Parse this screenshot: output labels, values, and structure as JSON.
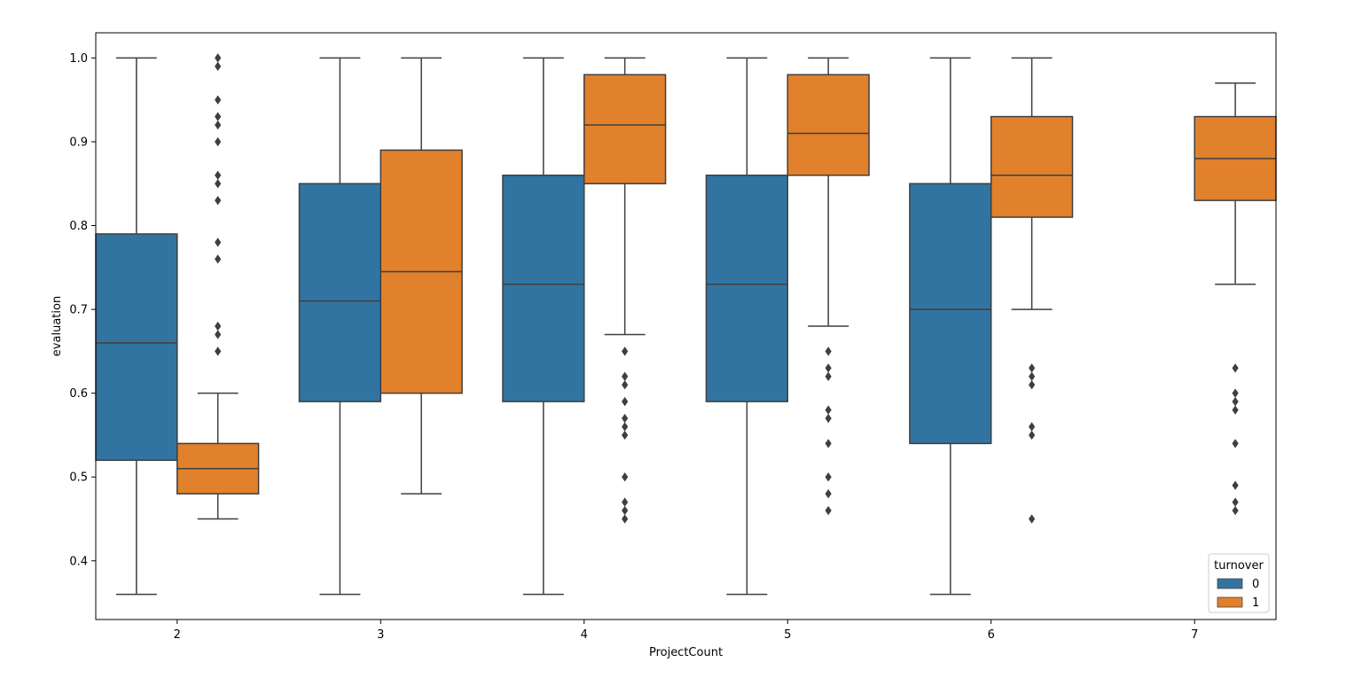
{
  "chart_data": {
    "type": "box",
    "xlabel": "ProjectCount",
    "ylabel": "evaluation",
    "categories": [
      "2",
      "3",
      "4",
      "5",
      "6",
      "7"
    ],
    "ylim": [
      0.33,
      1.03
    ],
    "yticks": [
      "0.4",
      "0.5",
      "0.6",
      "0.7",
      "0.8",
      "0.9",
      "1.0"
    ],
    "grid": false,
    "legend": {
      "title": "turnover",
      "placement": "bottom-right",
      "entries": [
        {
          "label": "0",
          "color": "#3274a1"
        },
        {
          "label": "1",
          "color": "#e1812c"
        }
      ]
    },
    "series": [
      {
        "name": "0",
        "color": "#3274a1",
        "boxes": [
          {
            "category": "2",
            "whislo": 0.36,
            "q1": 0.52,
            "med": 0.66,
            "q3": 0.79,
            "whishi": 1.0,
            "fliers": []
          },
          {
            "category": "3",
            "whislo": 0.36,
            "q1": 0.59,
            "med": 0.71,
            "q3": 0.85,
            "whishi": 1.0,
            "fliers": []
          },
          {
            "category": "4",
            "whislo": 0.36,
            "q1": 0.59,
            "med": 0.73,
            "q3": 0.86,
            "whishi": 1.0,
            "fliers": []
          },
          {
            "category": "5",
            "whislo": 0.36,
            "q1": 0.59,
            "med": 0.73,
            "q3": 0.86,
            "whishi": 1.0,
            "fliers": []
          },
          {
            "category": "6",
            "whislo": 0.36,
            "q1": 0.54,
            "med": 0.7,
            "q3": 0.85,
            "whishi": 1.0,
            "fliers": []
          },
          null
        ]
      },
      {
        "name": "1",
        "color": "#e1812c",
        "boxes": [
          {
            "category": "2",
            "whislo": 0.45,
            "q1": 0.48,
            "med": 0.51,
            "q3": 0.54,
            "whishi": 0.6,
            "fliers": [
              0.65,
              0.67,
              0.68,
              0.76,
              0.78,
              0.83,
              0.85,
              0.86,
              0.9,
              0.92,
              0.93,
              0.95,
              0.99,
              1.0
            ]
          },
          {
            "category": "3",
            "whislo": 0.48,
            "q1": 0.6,
            "med": 0.745,
            "q3": 0.89,
            "whishi": 1.0,
            "fliers": []
          },
          {
            "category": "4",
            "whislo": 0.67,
            "q1": 0.85,
            "med": 0.92,
            "q3": 0.98,
            "whishi": 1.0,
            "fliers": [
              0.45,
              0.46,
              0.47,
              0.5,
              0.55,
              0.56,
              0.57,
              0.59,
              0.61,
              0.62,
              0.65
            ]
          },
          {
            "category": "5",
            "whislo": 0.68,
            "q1": 0.86,
            "med": 0.91,
            "q3": 0.98,
            "whishi": 1.0,
            "fliers": [
              0.46,
              0.48,
              0.5,
              0.54,
              0.57,
              0.58,
              0.62,
              0.63,
              0.65
            ]
          },
          {
            "category": "6",
            "whislo": 0.7,
            "q1": 0.81,
            "med": 0.86,
            "q3": 0.93,
            "whishi": 1.0,
            "fliers": [
              0.45,
              0.55,
              0.56,
              0.61,
              0.62,
              0.63
            ]
          },
          {
            "category": "7",
            "whislo": 0.73,
            "q1": 0.83,
            "med": 0.88,
            "q3": 0.93,
            "whishi": 0.97,
            "fliers": [
              0.46,
              0.47,
              0.49,
              0.54,
              0.58,
              0.59,
              0.6,
              0.63
            ]
          }
        ]
      }
    ]
  }
}
